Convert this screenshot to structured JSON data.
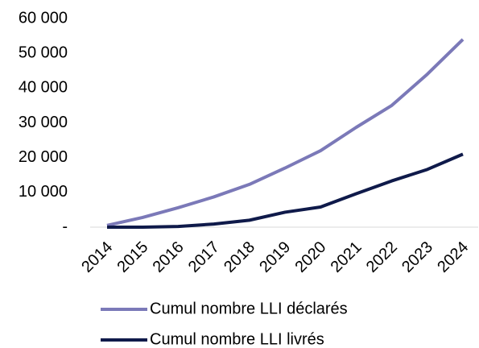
{
  "chart_data": {
    "type": "line",
    "categories": [
      "2014",
      "2015",
      "2016",
      "2017",
      "2018",
      "2019",
      "2020",
      "2021",
      "2022",
      "2023",
      "2024"
    ],
    "series": [
      {
        "name": "Cumul nombre LLI déclarés",
        "color": "#7b79b8",
        "values": [
          500,
          2800,
          5600,
          8700,
          12300,
          17000,
          22000,
          28700,
          35000,
          44000,
          54000
        ]
      },
      {
        "name": "Cumul nombre LLI livrés",
        "color": "#0f1a4a",
        "values": [
          0,
          0,
          200,
          900,
          2000,
          4300,
          5800,
          9600,
          13300,
          16600,
          21000
        ]
      }
    ],
    "ylim": [
      0,
      60000
    ],
    "yticks": [
      {
        "value": 0,
        "label": "-"
      },
      {
        "value": 10000,
        "label": "10 000"
      },
      {
        "value": 20000,
        "label": "20 000"
      },
      {
        "value": 30000,
        "label": "30 000"
      },
      {
        "value": 40000,
        "label": "40 000"
      },
      {
        "value": 50000,
        "label": "50 000"
      },
      {
        "value": 60000,
        "label": "60 000"
      }
    ],
    "grid": false
  }
}
